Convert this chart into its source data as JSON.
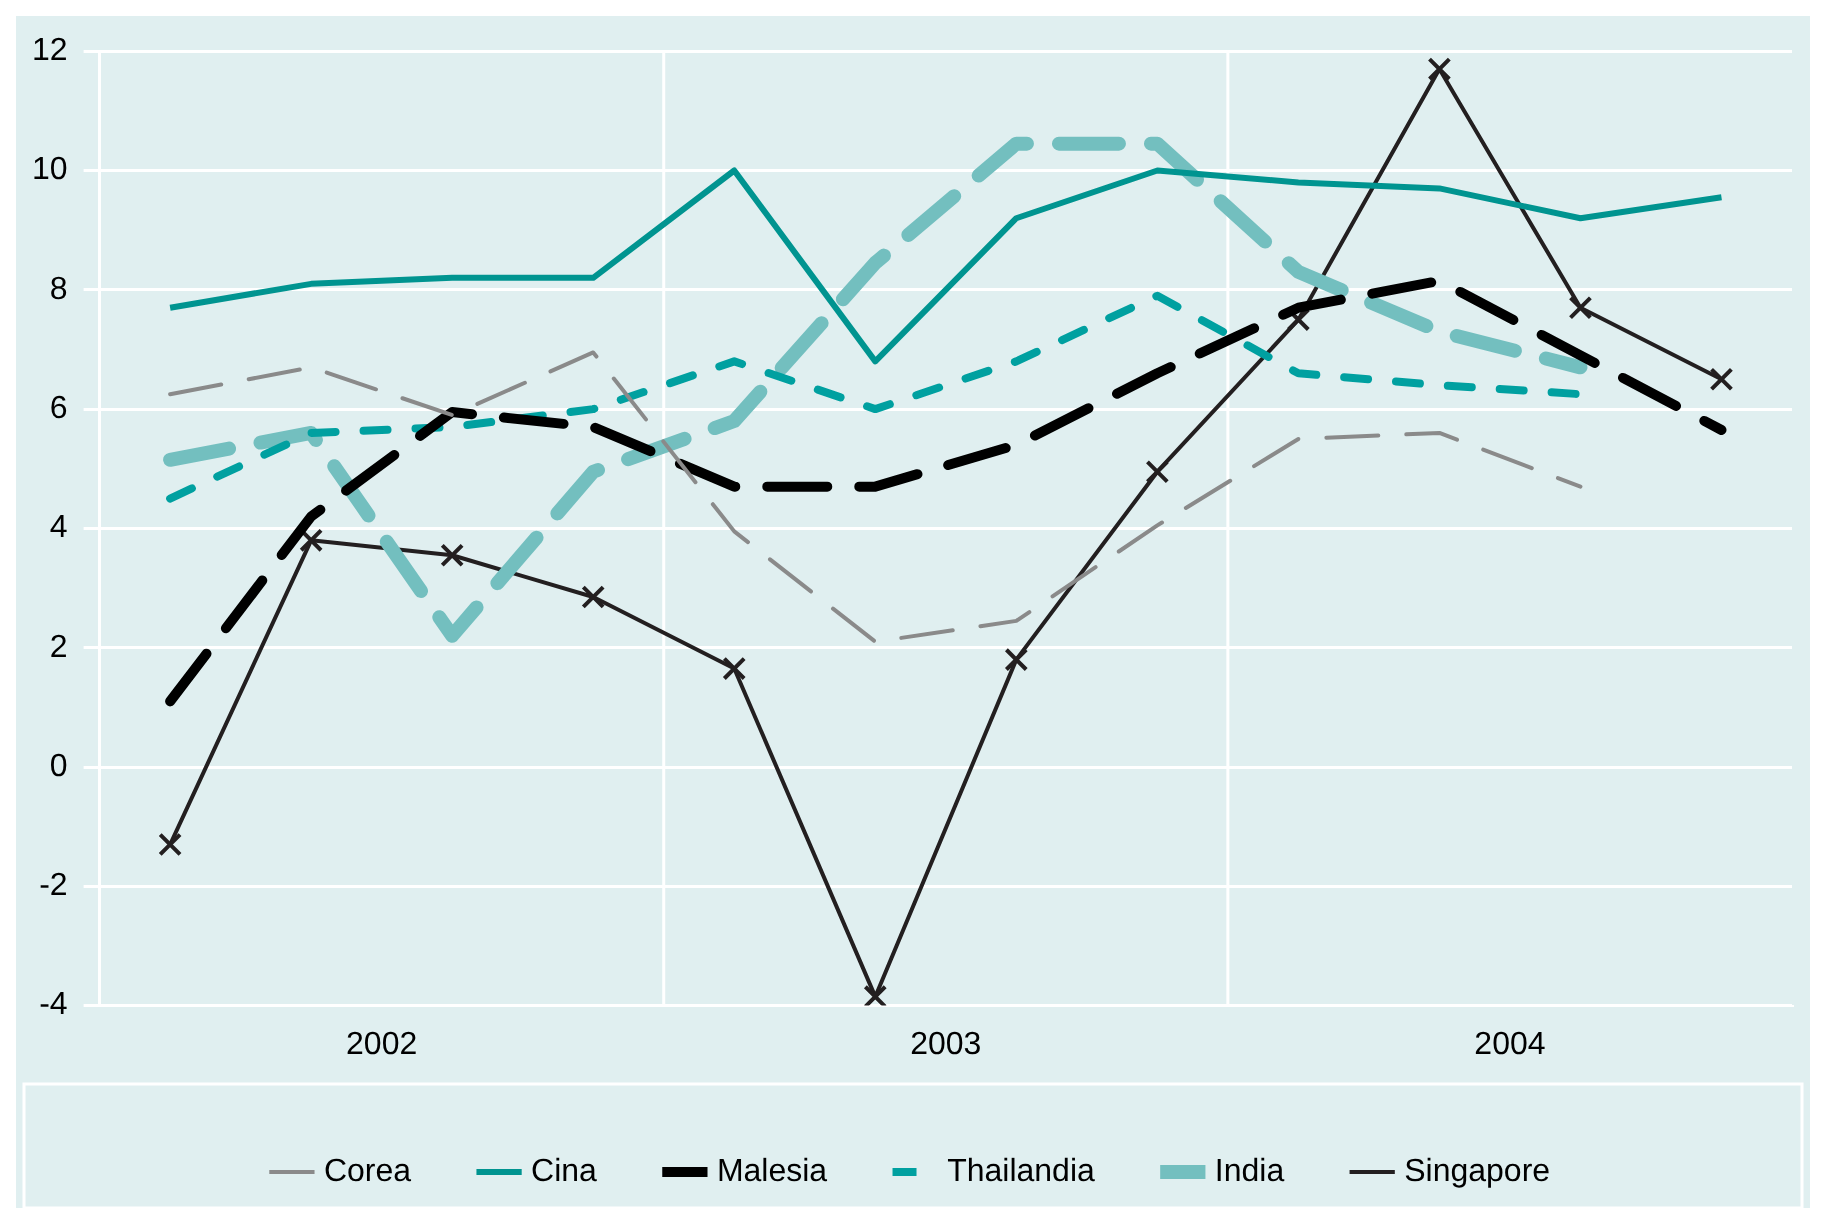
{
  "chart_data": {
    "type": "line",
    "x": [
      2002.125,
      2002.375,
      2002.625,
      2002.875,
      2003.125,
      2003.375,
      2003.625,
      2003.875,
      2004.125,
      2004.375,
      2004.625,
      2004.875
    ],
    "xlim": [
      2002,
      2005
    ],
    "xticks": [
      {
        "value": 2002.5,
        "label": "2002"
      },
      {
        "value": 2003.5,
        "label": "2003"
      },
      {
        "value": 2004.5,
        "label": "2004"
      }
    ],
    "ylim": [
      -4,
      12
    ],
    "yticks": [
      -4,
      -2,
      0,
      2,
      4,
      6,
      8,
      10,
      12
    ],
    "grid": "y",
    "legend": "bottom",
    "ref_lines": [
      {
        "axis": "x",
        "value": 2003,
        "color": "#ffffff"
      },
      {
        "axis": "x",
        "value": 2004,
        "color": "#ffffff"
      }
    ],
    "series": [
      {
        "name": "Corea",
        "color": "#8a8a8a",
        "line_style": "dashed",
        "values": [
          6.25,
          6.7,
          5.9,
          6.95,
          3.95,
          2.1,
          2.45,
          4.05,
          5.5,
          5.6,
          4.7,
          null
        ]
      },
      {
        "name": "Cina",
        "color": "#009490",
        "line_style": "solid",
        "values": [
          7.7,
          8.1,
          8.2,
          8.2,
          10.0,
          6.8,
          9.2,
          10.0,
          9.8,
          9.7,
          9.2,
          9.55
        ]
      },
      {
        "name": "Malesia",
        "color": "#000000",
        "line_style": "dashed",
        "values": [
          1.1,
          4.2,
          5.95,
          5.7,
          4.7,
          4.7,
          5.4,
          6.6,
          7.7,
          8.15,
          6.9,
          5.65
        ]
      },
      {
        "name": "Thailandia",
        "color": "#00a0a0",
        "line_style": "dashed",
        "values": [
          4.5,
          5.6,
          5.7,
          6.0,
          6.8,
          6.0,
          6.8,
          7.9,
          6.6,
          6.4,
          6.25,
          null
        ]
      },
      {
        "name": "India",
        "color": "#73bfbf",
        "line_style": "dashed",
        "values": [
          5.15,
          5.6,
          2.2,
          4.95,
          5.8,
          8.45,
          10.45,
          10.45,
          8.3,
          7.3,
          6.7,
          null
        ]
      },
      {
        "name": "Singapore",
        "color": "#231f20",
        "line_style": "solid",
        "marker": "cross",
        "values": [
          -1.3,
          3.8,
          3.55,
          2.85,
          1.65,
          -3.85,
          1.8,
          4.95,
          7.5,
          11.7,
          7.7,
          6.5
        ]
      }
    ]
  }
}
